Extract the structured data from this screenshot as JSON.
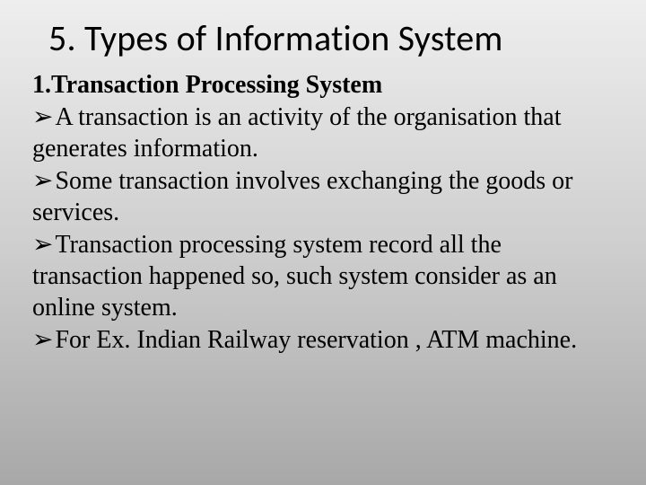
{
  "slide": {
    "background_gradient_top": "#eeeeee",
    "background_gradient_mid": "#cfcfcf",
    "background_gradient_bottom": "#a8a8a8",
    "title": {
      "text": "5. Types of Information System",
      "font_family": "Calibri",
      "font_size_pt": 40,
      "font_weight": 400,
      "color": "#000000"
    },
    "subtitle": {
      "text": "1.Transaction Processing System",
      "font_family": "Times New Roman",
      "font_size_pt": 28,
      "font_weight": 700,
      "color": "#000000"
    },
    "bullet_glyph": "➢",
    "bullets": [
      "A transaction is an activity of the organisation that generates information.",
      "Some transaction involves exchanging the goods or services.",
      "Transaction processing system record all the transaction happened so, such system consider as an online system.",
      "For Ex. Indian Railway reservation , ATM machine."
    ],
    "body_style": {
      "font_family": "Times New Roman",
      "font_size_pt": 28,
      "font_weight": 400,
      "line_height": 1.25,
      "color": "#000000"
    }
  }
}
